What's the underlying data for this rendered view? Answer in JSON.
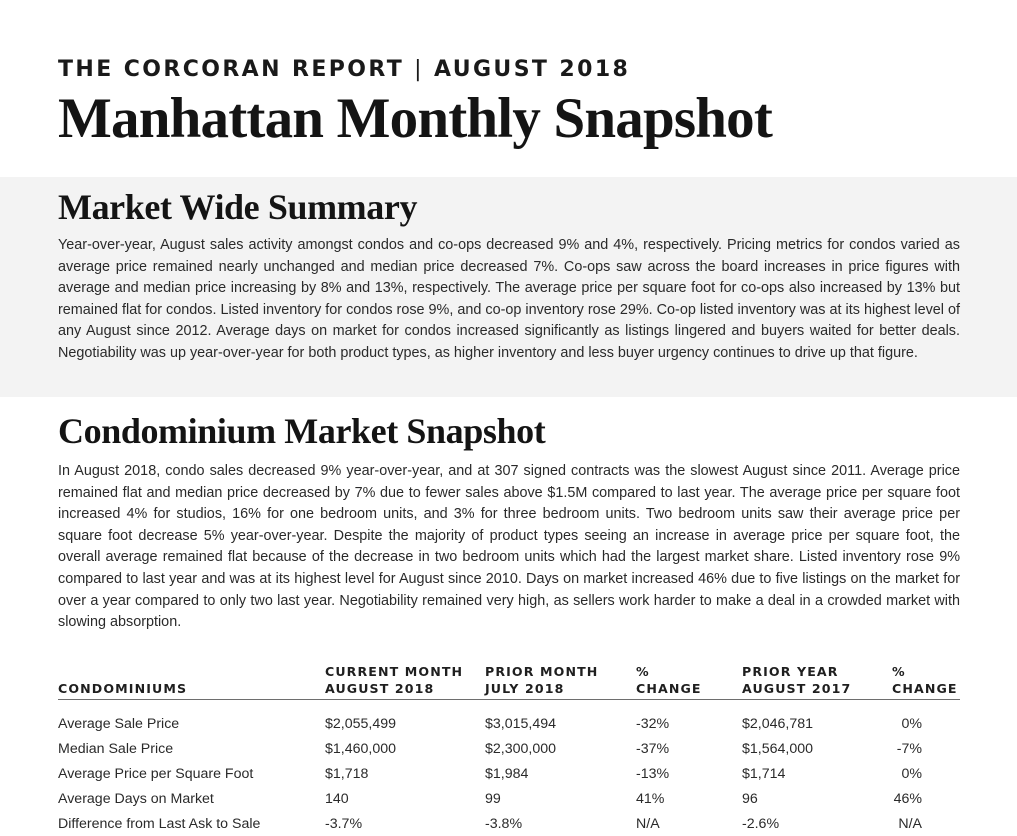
{
  "header": {
    "report_name": "THE CORCORAN REPORT",
    "separator": "|",
    "report_period": "AUGUST 2018",
    "title": "Manhattan Monthly Snapshot"
  },
  "summary": {
    "heading": "Market Wide Summary",
    "body": "Year-over-year, August sales activity amongst condos and co-ops decreased 9% and 4%, respectively. Pricing metrics for condos varied as average price remained nearly unchanged and median price decreased 7%. Co-ops saw across the board increases in price figures with average and median price increasing by 8% and 13%, respectively. The average price per square foot for co-ops also increased by 13% but remained flat for condos. Listed inventory for condos rose 9%, and co-op inventory rose 29%. Co-op listed inventory was at its highest level of any August since 2012. Average days on market for condos increased significantly as listings lingered and buyers waited for better deals. Negotiability was up year-over-year for both product types, as higher inventory and less buyer urgency continues to drive up that figure."
  },
  "condo": {
    "heading": "Condominium Market Snapshot",
    "body": "In August 2018, condo sales decreased 9% year-over-year, and at 307 signed contracts was the slowest August since 2011. Average price remained flat and median price decreased by 7% due to fewer sales above $1.5M compared to last year. The average price per square foot increased 4% for studios, 16% for one bedroom units, and 3% for three bedroom units. Two bedroom units saw their average price per square foot decrease 5% year-over-year. Despite the majority of product types seeing an increase in average price per square foot, the overall average remained flat because of the decrease in two bedroom units which had the largest market share. Listed inventory rose 9% compared to last year and was at its highest level for August since 2010. Days on market increased 46% due to five listings on the market for over a year compared to only two last year. Negotiability remained very high, as sellers work harder to make a deal in a crowded market with slowing absorption."
  },
  "table": {
    "headers": {
      "label": "CONDOMINIUMS",
      "current_l1": "CURRENT MONTH",
      "current_l2": "AUGUST 2018",
      "prior_l1": "PRIOR MONTH",
      "prior_l2": "JULY 2018",
      "chg1_l1": "%",
      "chg1_l2": "CHANGE",
      "py_l1": "PRIOR YEAR",
      "py_l2": "AUGUST 2017",
      "chg2_l1": "%",
      "chg2_l2": "CHANGE"
    },
    "rows": [
      {
        "label": "Average Sale Price",
        "current": "$2,055,499",
        "prior": "$3,015,494",
        "chg1": "-32%",
        "py": "$2,046,781",
        "chg2": "0%"
      },
      {
        "label": "Median Sale Price",
        "current": "$1,460,000",
        "prior": "$2,300,000",
        "chg1": "-37%",
        "py": "$1,564,000",
        "chg2": "-7%"
      },
      {
        "label": "Average Price per Square Foot",
        "current": "$1,718",
        "prior": "$1,984",
        "chg1": "-13%",
        "py": "$1,714",
        "chg2": "0%"
      },
      {
        "label": "Average Days on Market",
        "current": "140",
        "prior": "99",
        "chg1": "41%",
        "py": "96",
        "chg2": "46%"
      },
      {
        "label": "Difference from Last Ask to Sale",
        "current": "-3.7%",
        "prior": "-3.8%",
        "chg1": "N/A",
        "py": "-2.6%",
        "chg2": "N/A"
      }
    ]
  }
}
